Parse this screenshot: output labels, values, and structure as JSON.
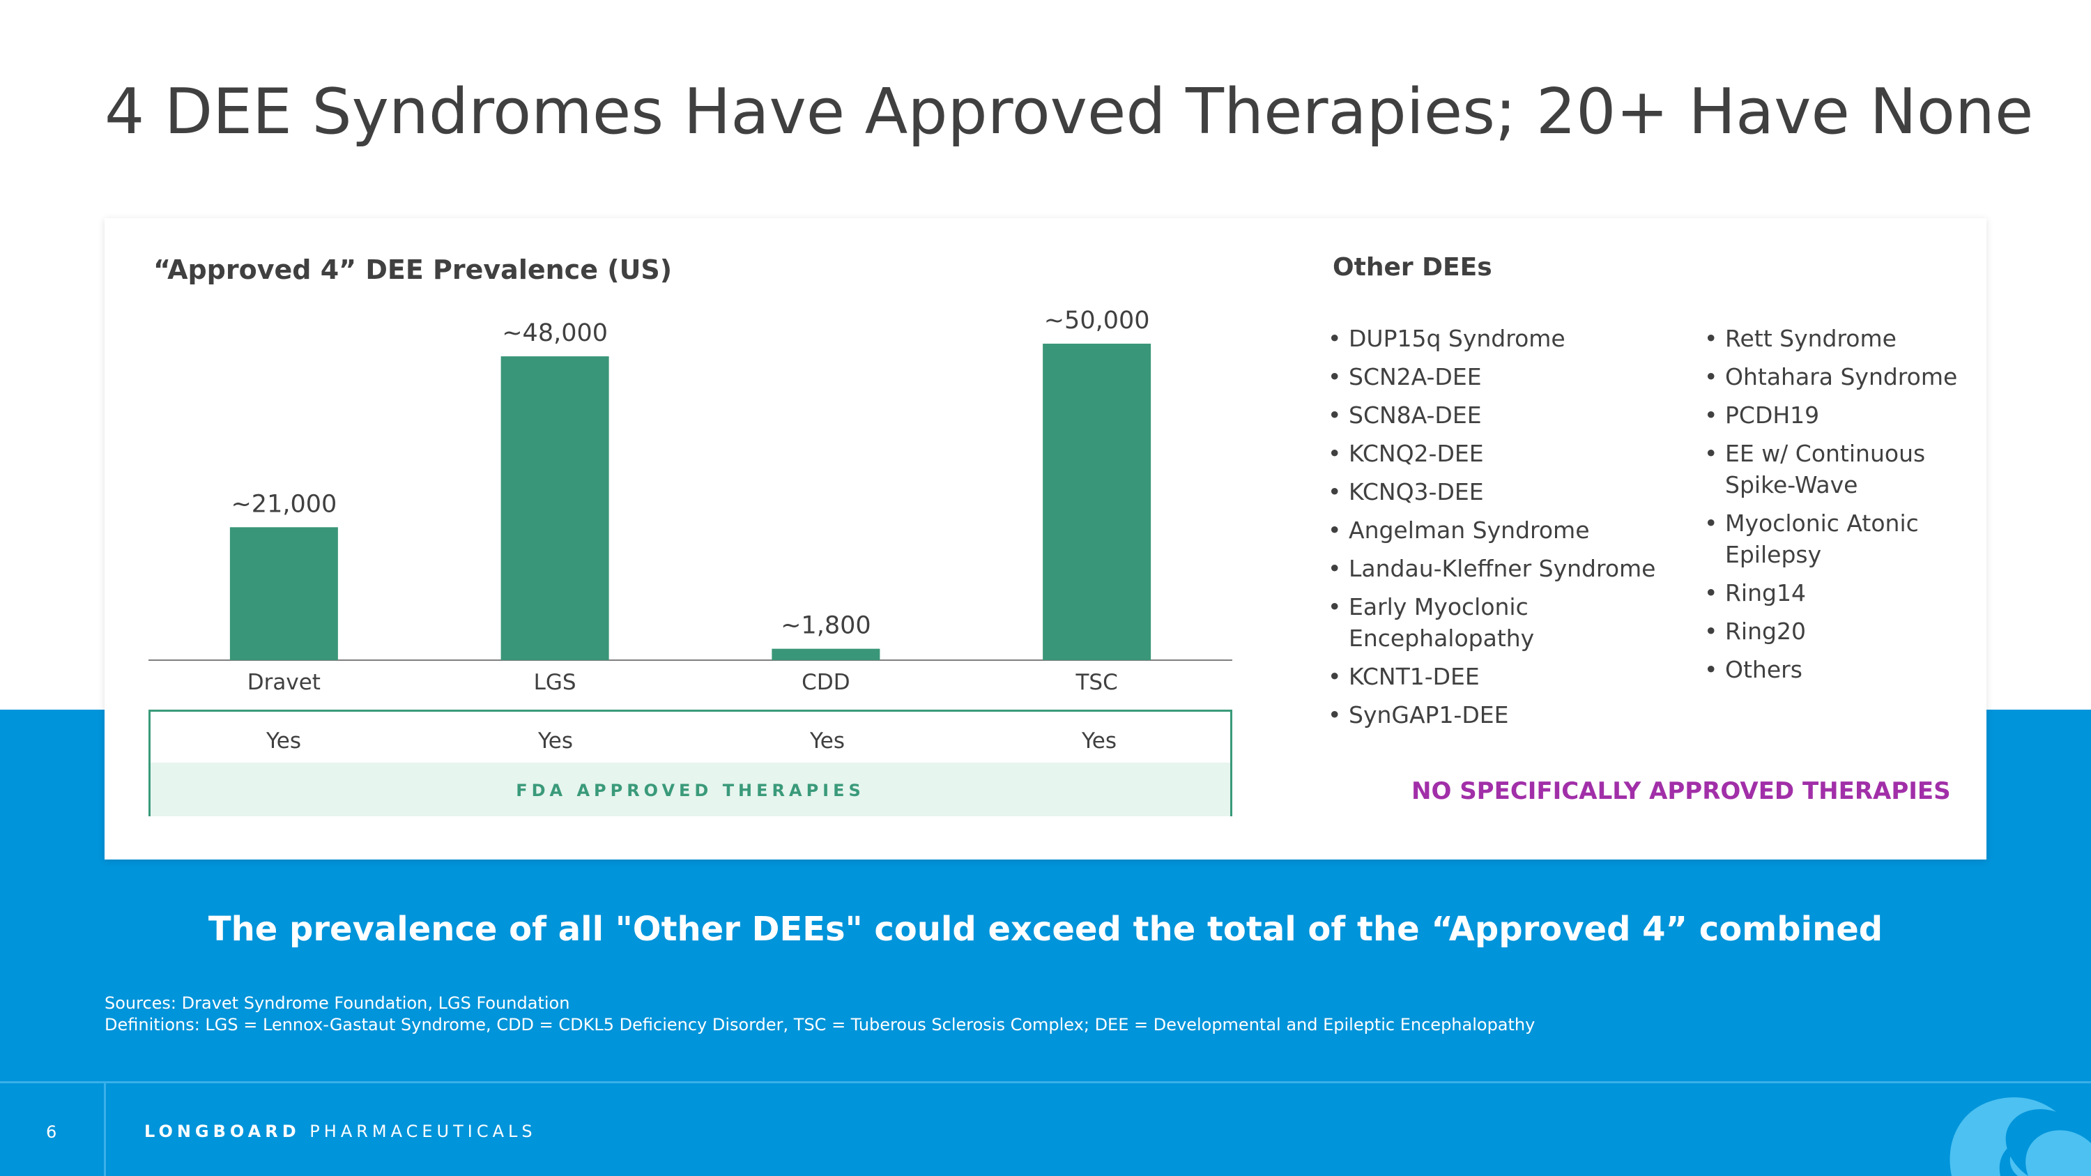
{
  "title": "4 DEE Syndromes Have Approved Therapies; 20+ Have None",
  "chart_data": {
    "type": "bar",
    "title": "“Approved 4” DEE Prevalence (US)",
    "categories": [
      "Dravet",
      "LGS",
      "CDD",
      "TSC"
    ],
    "values": [
      21000,
      48000,
      1800,
      50000
    ],
    "data_labels": [
      "~21,000",
      "~48,000",
      "~1,800",
      "~50,000"
    ],
    "xlabel": "",
    "ylabel": "",
    "ylim": [
      0,
      50000
    ],
    "grid": false,
    "bar_color": "#3a9678"
  },
  "fda_table": {
    "values": [
      "Yes",
      "Yes",
      "Yes",
      "Yes"
    ],
    "label": "FDA APPROVED THERAPIES"
  },
  "other_dees": {
    "title": "Other DEEs",
    "left": [
      "DUP15q Syndrome",
      "SCN2A-DEE",
      "SCN8A-DEE",
      "KCNQ2-DEE",
      "KCNQ3-DEE",
      "Angelman Syndrome",
      "Landau-Kleffner Syndrome",
      "Early Myoclonic Encephalopathy",
      "KCNT1-DEE",
      "SynGAP1-DEE"
    ],
    "right": [
      "Rett Syndrome",
      "Ohtahara Syndrome",
      "PCDH19",
      "EE w/ Continuous Spike-Wave",
      "Myoclonic Atonic Epilepsy",
      "Ring14",
      "Ring20",
      "Others"
    ],
    "note": "NO SPECIFICALLY APPROVED THERAPIES"
  },
  "banner": "The prevalence of all \"Other DEEs\" could exceed the total of the “Approved 4” combined",
  "sources": "Sources: Dravet Syndrome Foundation, LGS Foundation",
  "definitions": "Definitions: LGS = Lennox-Gastaut Syndrome, CDD = CDKL5 Deficiency Disorder, TSC = Tuberous Sclerosis Complex; DEE = Developmental and Epileptic Encephalopathy",
  "footer": {
    "page_number": "6",
    "brand_bold": "LONGBOARD",
    "brand_rest": "PHARMACEUTICALS"
  },
  "colors": {
    "accent_blue": "#0094da",
    "green": "#3a9678",
    "purple": "#a12fa8"
  }
}
